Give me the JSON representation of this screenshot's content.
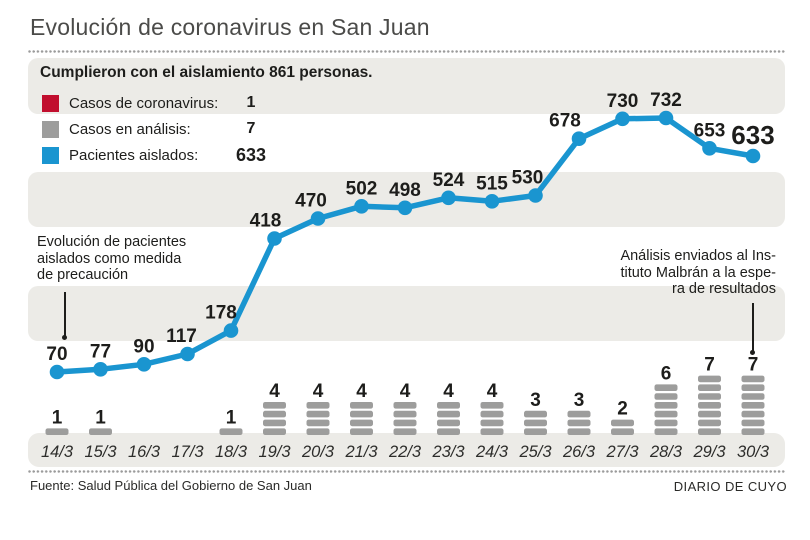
{
  "title": "Evolución de coronavirus en San Juan",
  "legend": {
    "header": "Cumplieron con el aislamiento 861 personas.",
    "items": [
      {
        "label": "Casos de coronavirus:",
        "value": "1",
        "color": "#c10e2e",
        "icon": "red-square"
      },
      {
        "label": "Casos en análisis:",
        "value": "7",
        "color": "#9d9d9c",
        "icon": "gray-square"
      },
      {
        "label": "Pacientes aislados:",
        "value": "633",
        "color": "#1a95d0",
        "icon": "blue-square"
      }
    ]
  },
  "annotations": {
    "left": [
      "Evolución de pacientes",
      "aislados como medida",
      "de precaución"
    ],
    "right": [
      "Análisis enviados al Ins-",
      "tituto Malbrán a la espe-",
      "ra de resultados"
    ]
  },
  "footer": {
    "source": "Fuente: Salud Pública del Gobierno de San Juan",
    "credit": "DIARIO DE CUYO"
  },
  "chart_data": {
    "type": "line",
    "title": "Evolución de coronavirus en San Juan",
    "categories": [
      "14/3",
      "15/3",
      "16/3",
      "17/3",
      "18/3",
      "19/3",
      "20/3",
      "21/3",
      "22/3",
      "23/3",
      "24/3",
      "25/3",
      "26/3",
      "27/3",
      "28/3",
      "29/3",
      "30/3"
    ],
    "series": [
      {
        "name": "Pacientes aislados",
        "type": "line",
        "color": "#1a95d0",
        "values": [
          70,
          77,
          90,
          117,
          178,
          418,
          470,
          502,
          498,
          524,
          515,
          530,
          678,
          730,
          732,
          653,
          633
        ]
      },
      {
        "name": "Casos en análisis",
        "type": "dash-stack-bar",
        "color": "#9d9d9c",
        "values": [
          1,
          1,
          0,
          0,
          1,
          4,
          4,
          4,
          4,
          4,
          4,
          3,
          3,
          2,
          6,
          7,
          7
        ]
      }
    ],
    "xlabel": "",
    "ylabel": "",
    "ylim": [
      0,
      800
    ],
    "grid": false,
    "legend_position": "top-left",
    "data_labels": true,
    "highlight_last_line_label": true
  }
}
